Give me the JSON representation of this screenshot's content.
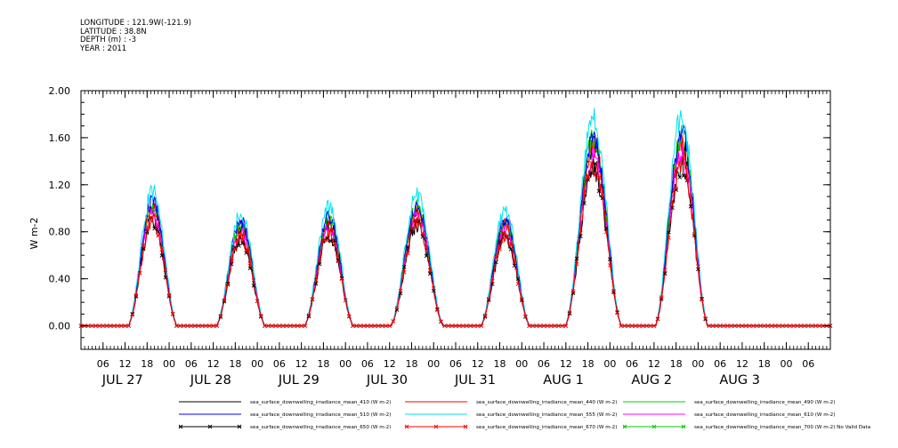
{
  "header": {
    "lines": [
      "LONGITUDE : 121.9W(-121.9)",
      "LATITUDE : 38.8N",
      "DEPTH (m) : -3",
      "YEAR : 2011"
    ]
  },
  "chart_data": {
    "type": "line",
    "title": "",
    "xlabel": "",
    "ylabel": "W m-2",
    "ylim": [
      -0.2,
      2.0
    ],
    "y_ticks": [
      0.0,
      0.4,
      0.8,
      1.2,
      1.6,
      2.0
    ],
    "y_tick_labels": [
      "0.00",
      "0.40",
      "0.80",
      "1.20",
      "1.60",
      "2.00"
    ],
    "x_range_hours": [
      0,
      204
    ],
    "x_hour_ticks": [
      {
        "h": 6,
        "label": "06"
      },
      {
        "h": 12,
        "label": "12"
      },
      {
        "h": 18,
        "label": "18"
      },
      {
        "h": 24,
        "label": "00"
      },
      {
        "h": 30,
        "label": "06"
      },
      {
        "h": 36,
        "label": "12"
      },
      {
        "h": 42,
        "label": "18"
      },
      {
        "h": 48,
        "label": "00"
      },
      {
        "h": 54,
        "label": "06"
      },
      {
        "h": 60,
        "label": "12"
      },
      {
        "h": 66,
        "label": "18"
      },
      {
        "h": 72,
        "label": "00"
      },
      {
        "h": 78,
        "label": "06"
      },
      {
        "h": 84,
        "label": "12"
      },
      {
        "h": 90,
        "label": "18"
      },
      {
        "h": 96,
        "label": "00"
      },
      {
        "h": 102,
        "label": "06"
      },
      {
        "h": 108,
        "label": "12"
      },
      {
        "h": 114,
        "label": "18"
      },
      {
        "h": 120,
        "label": "00"
      },
      {
        "h": 126,
        "label": "06"
      },
      {
        "h": 132,
        "label": "12"
      },
      {
        "h": 138,
        "label": "18"
      },
      {
        "h": 144,
        "label": "00"
      },
      {
        "h": 150,
        "label": "06"
      },
      {
        "h": 156,
        "label": "12"
      },
      {
        "h": 162,
        "label": "18"
      },
      {
        "h": 168,
        "label": "00"
      },
      {
        "h": 174,
        "label": "06"
      },
      {
        "h": 180,
        "label": "12"
      },
      {
        "h": 186,
        "label": "18"
      },
      {
        "h": 192,
        "label": "00"
      },
      {
        "h": 198,
        "label": "06"
      }
    ],
    "x_day_labels": [
      {
        "h": 6,
        "label": "JUL 27"
      },
      {
        "h": 30,
        "label": "JUL 28"
      },
      {
        "h": 54,
        "label": "JUL 29"
      },
      {
        "h": 78,
        "label": "JUL 30"
      },
      {
        "h": 102,
        "label": "JUL 31"
      },
      {
        "h": 126,
        "label": "AUG  1"
      },
      {
        "h": 150,
        "label": "AUG  2"
      },
      {
        "h": 174,
        "label": "AUG  3"
      }
    ],
    "day_peaks": [
      {
        "center": 19.5,
        "half_width": 7.0,
        "peak": 1.05
      },
      {
        "center": 43.5,
        "half_width": 7.0,
        "peak": 0.88
      },
      {
        "center": 67.5,
        "half_width": 7.0,
        "peak": 0.92
      },
      {
        "center": 91.5,
        "half_width": 7.5,
        "peak": 1.02
      },
      {
        "center": 115.5,
        "half_width": 7.0,
        "peak": 0.9
      },
      {
        "center": 139.5,
        "half_width": 8.0,
        "peak": 1.6
      },
      {
        "center": 163.5,
        "half_width": 7.5,
        "peak": 1.62
      }
    ],
    "series": [
      {
        "name": "sea_surface_downwelling_irradiance_mean_410 (W m-2)",
        "color": "#000000",
        "scale": 0.96,
        "marker": ""
      },
      {
        "name": "sea_surface_downwelling_irradiance_mean_440 (W m-2)",
        "color": "#ff0000",
        "scale": 0.97,
        "marker": ""
      },
      {
        "name": "sea_surface_downwelling_irradiance_mean_490 (W m-2)",
        "color": "#00cc00",
        "scale": 1.0,
        "marker": ""
      },
      {
        "name": "sea_surface_downwelling_irradiance_mean_510 (W m-2)",
        "color": "#0000ff",
        "scale": 1.02,
        "marker": ""
      },
      {
        "name": "sea_surface_downwelling_irradiance_mean_555 (W m-2)",
        "color": "#00e5ee",
        "scale": 1.1,
        "marker": ""
      },
      {
        "name": "sea_surface_downwelling_irradiance_mean_610 (W m-2)",
        "color": "#ff00ff",
        "scale": 0.9,
        "marker": ""
      },
      {
        "name": "sea_surface_downwelling_irradiance_mean_650 (W m-2)",
        "color": "#000000",
        "scale": 0.84,
        "marker": "x"
      },
      {
        "name": "sea_surface_downwelling_irradiance_mean_670 (W m-2)",
        "color": "#ff0000",
        "scale": 0.86,
        "marker": "x"
      },
      {
        "name": "sea_surface_downwelling_irradiance_mean_700 (W m-2) No Valid Data",
        "color": "#00cc00",
        "scale": 0,
        "marker": "x"
      }
    ]
  }
}
